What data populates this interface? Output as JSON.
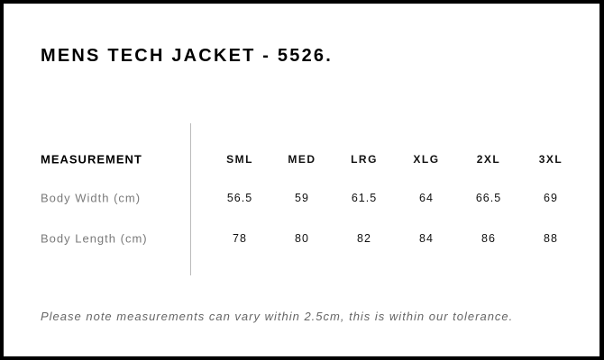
{
  "title": "MENS TECH JACKET - 5526.",
  "table": {
    "header_label": "MEASUREMENT",
    "sizes": [
      "SML",
      "MED",
      "LRG",
      "XLG",
      "2XL",
      "3XL"
    ],
    "rows": [
      {
        "label": "Body Width (cm)",
        "values": [
          "56.5",
          "59",
          "61.5",
          "64",
          "66.5",
          "69"
        ]
      },
      {
        "label": "Body Length (cm)",
        "values": [
          "78",
          "80",
          "82",
          "84",
          "86",
          "88"
        ]
      }
    ]
  },
  "note": "Please note measurements can vary within 2.5cm, this is within our tolerance."
}
